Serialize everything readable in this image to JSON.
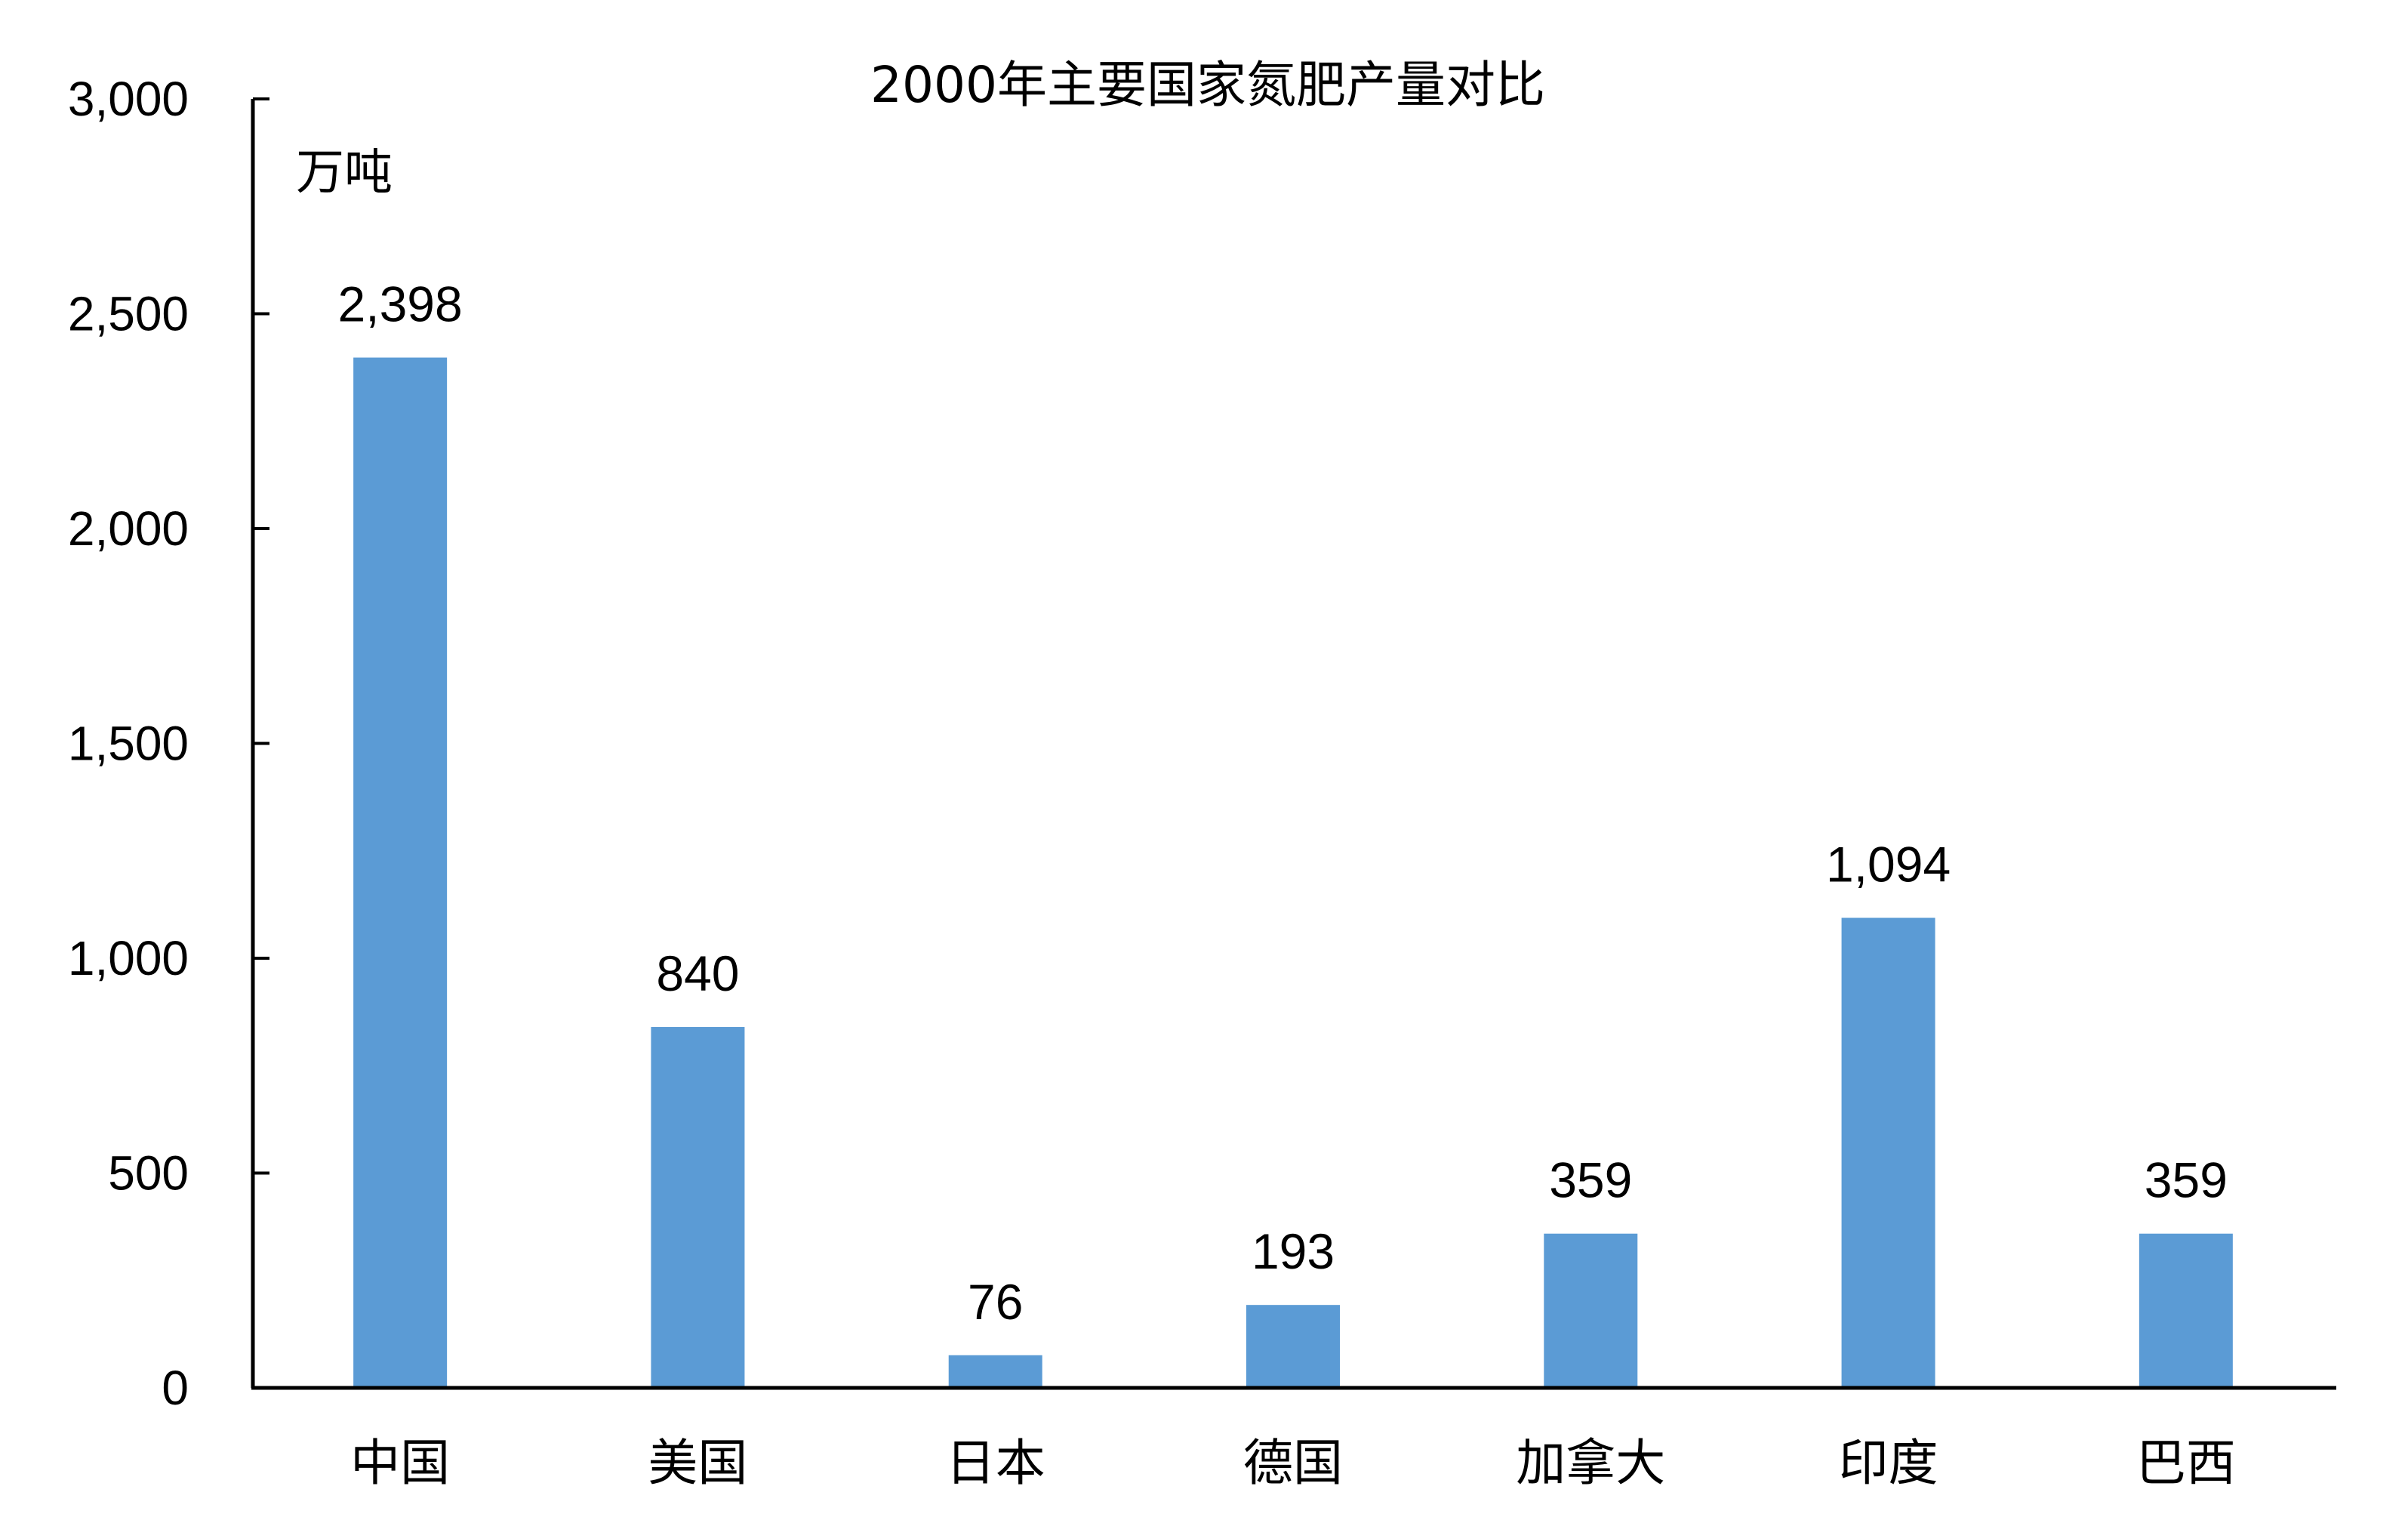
{
  "chart_data": {
    "type": "bar",
    "title": "2000年主要国家氮肥产量对比",
    "ylabel": "万吨",
    "xlabel": "",
    "categories": [
      "中国",
      "美国",
      "日本",
      "德国",
      "加拿大",
      "印度",
      "巴西"
    ],
    "series": [
      {
        "values": [
          2398,
          840,
          76,
          193,
          359,
          1094,
          359
        ],
        "value_labels": [
          "2,398",
          "840",
          "76",
          "193",
          "359",
          "1,094",
          "359"
        ],
        "color": "#5b9bd5"
      }
    ],
    "ylim": [
      0,
      3000
    ],
    "yticks": [
      0,
      500,
      1000,
      1500,
      2000,
      2500,
      3000
    ],
    "ytick_labels": [
      "0",
      "500",
      "1,000",
      "1,500",
      "2,000",
      "2,500",
      "3,000"
    ],
    "grid": false,
    "legend": "none"
  }
}
